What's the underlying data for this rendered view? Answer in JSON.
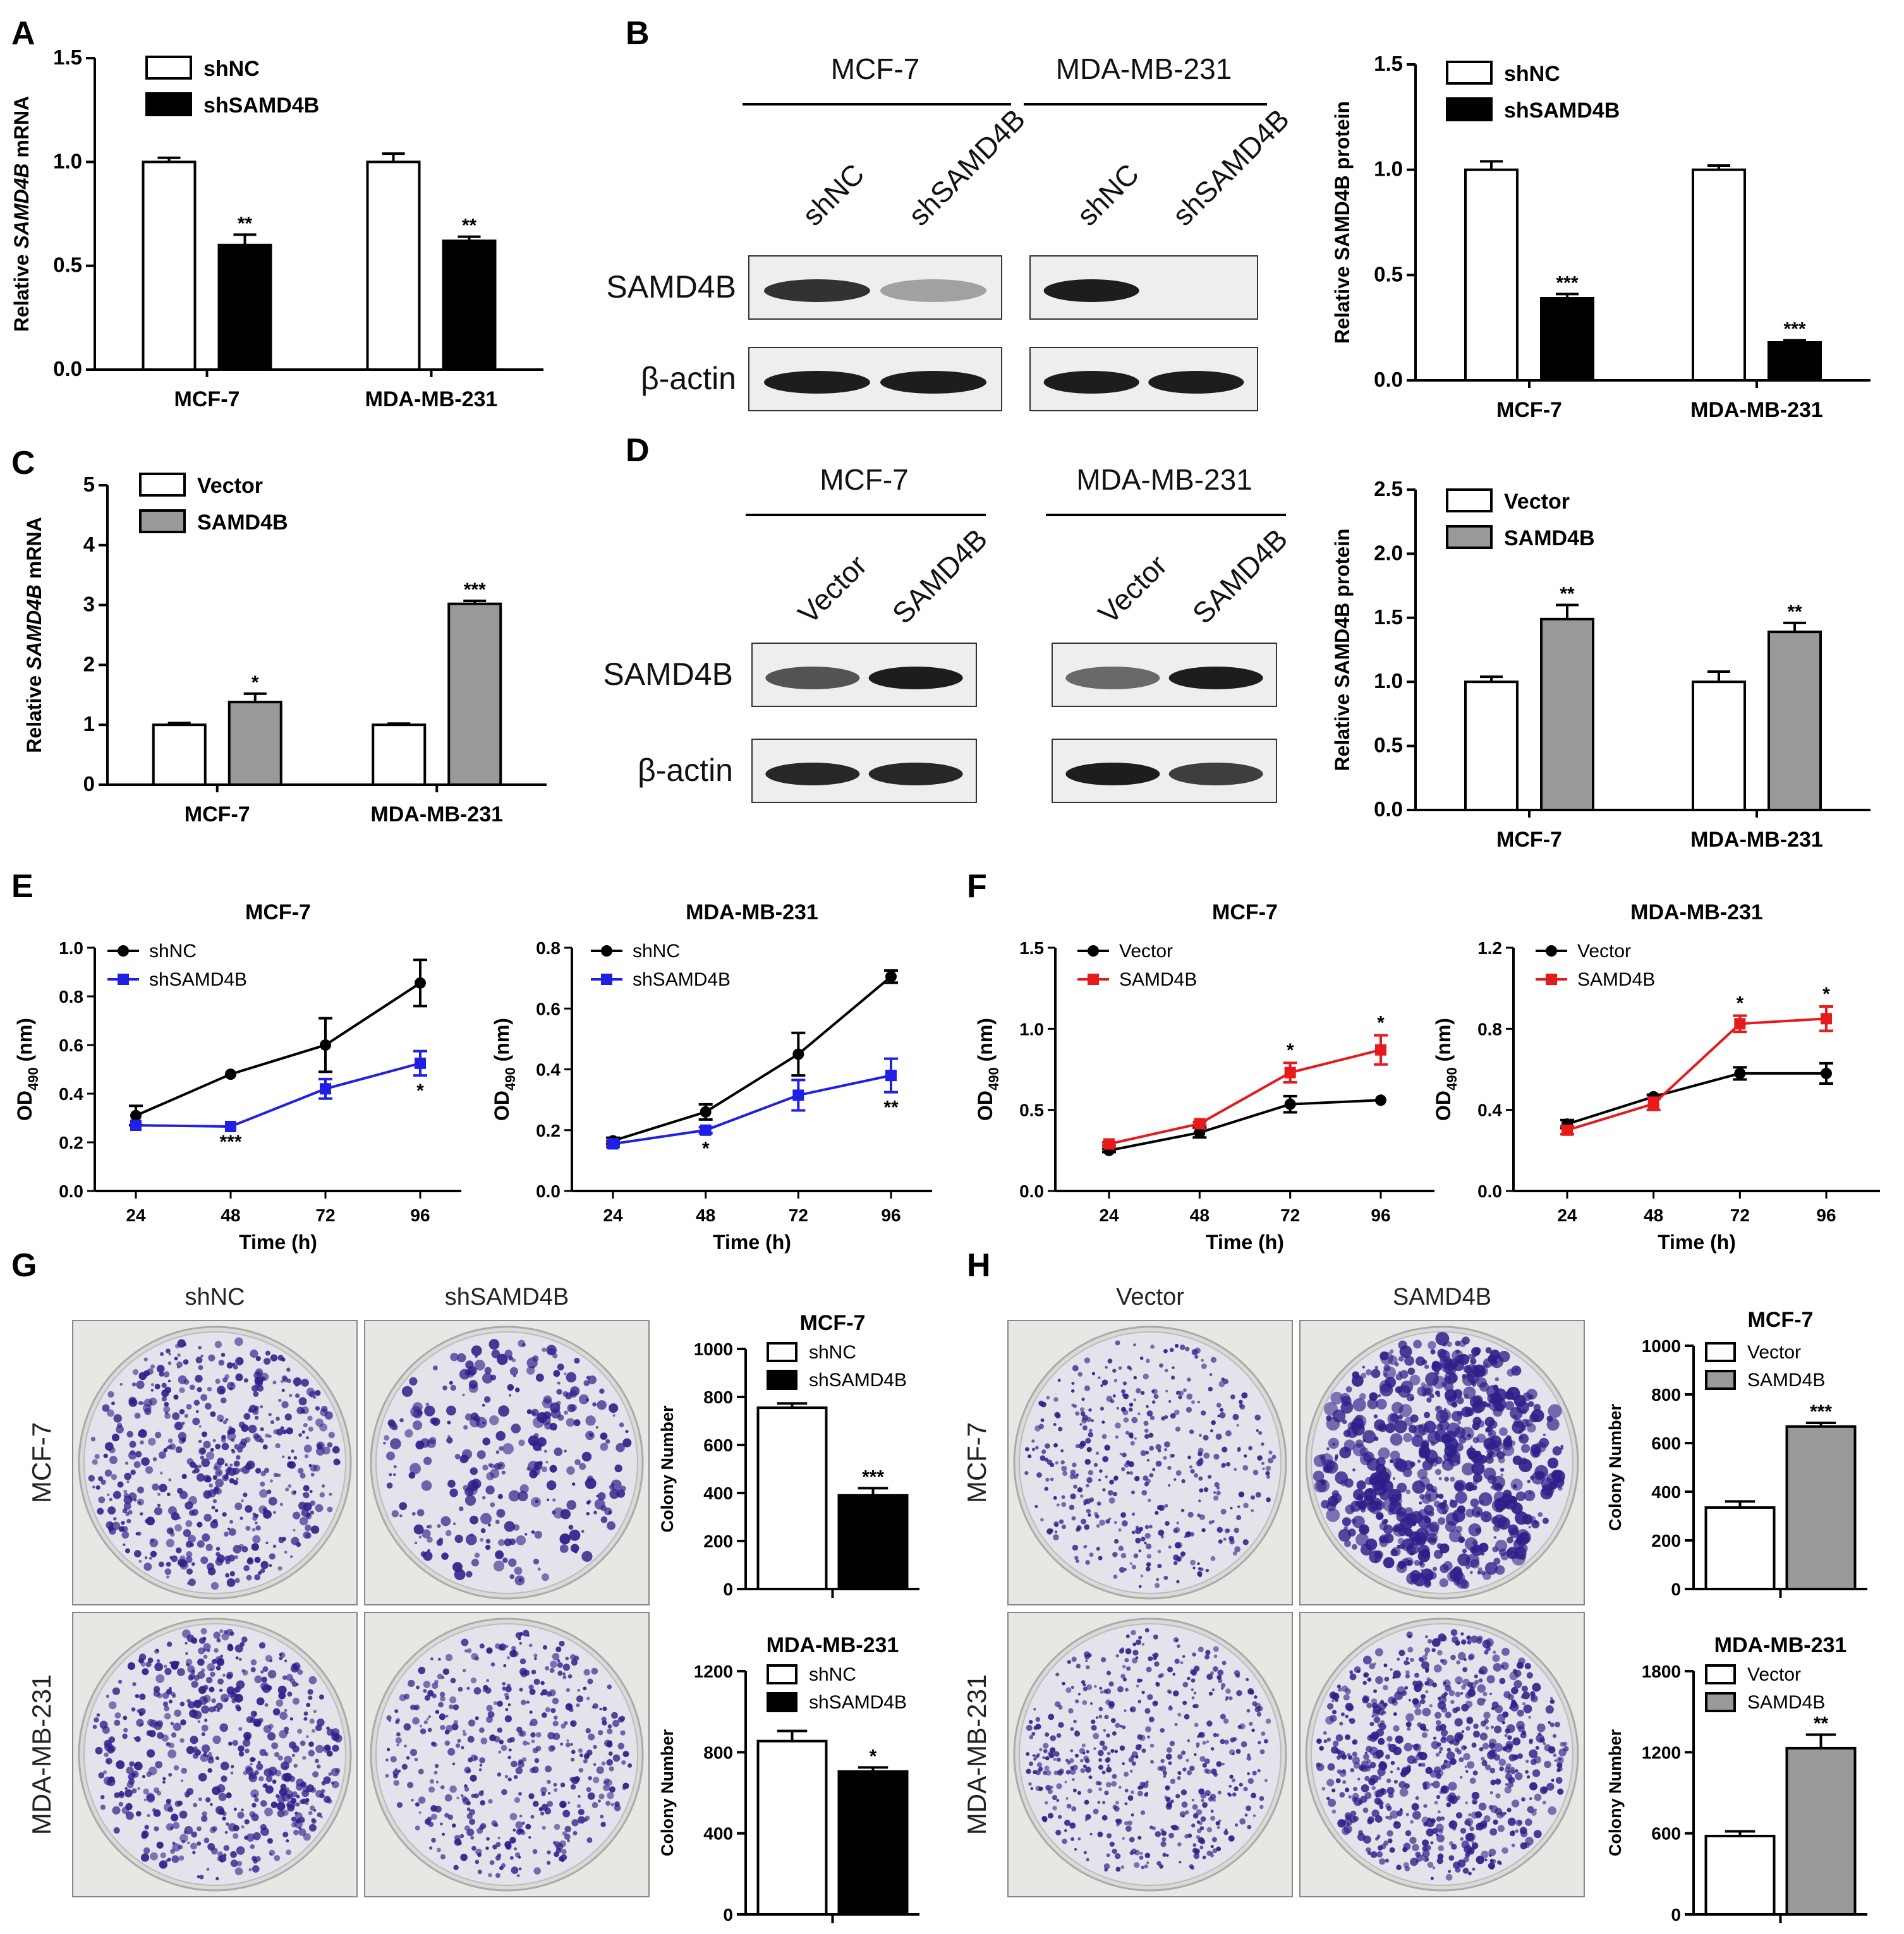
{
  "panels": {
    "A": "A",
    "B": "B",
    "C": "C",
    "D": "D",
    "E": "E",
    "F": "F",
    "G": "G",
    "H": "H"
  },
  "western_blots": {
    "B": {
      "cell_lines": [
        "MCF-7",
        "MDA-MB-231"
      ],
      "lanes": [
        "shNC",
        "shSAMD4B",
        "shNC",
        "shSAMD4B"
      ],
      "rows": [
        "SAMD4B",
        "β-actin"
      ]
    },
    "D": {
      "cell_lines": [
        "MCF-7",
        "MDA-MB-231"
      ],
      "lanes": [
        "Vector",
        "SAMD4B",
        "Vector",
        "SAMD4B"
      ],
      "rows": [
        "SAMD4B",
        "β-actin"
      ]
    }
  },
  "colony_plates": {
    "G": {
      "columns": [
        "shNC",
        "shSAMD4B"
      ],
      "rows": [
        "MCF-7",
        "MDA-MB-231"
      ]
    },
    "H": {
      "columns": [
        "Vector",
        "SAMD4B"
      ],
      "rows": [
        "MCF-7",
        "MDA-MB-231"
      ]
    }
  },
  "colors": {
    "shNC": "#ffffff",
    "shSAMD4B": "#000000",
    "Vector": "#ffffff",
    "SAMD4B": "#999999",
    "line_control": "#000000",
    "line_sh": "#1f1fe6",
    "line_oe": "#e61a1a",
    "plate_stain": "#2e1f8a"
  },
  "chart_data": [
    {
      "id": "A",
      "type": "bar",
      "title": "",
      "categories": [
        "MCF-7",
        "MDA-MB-231"
      ],
      "series": [
        {
          "name": "shNC",
          "values": [
            1.0,
            1.0
          ],
          "errors": [
            0.02,
            0.04
          ]
        },
        {
          "name": "shSAMD4B",
          "values": [
            0.6,
            0.62
          ],
          "errors": [
            0.05,
            0.02
          ]
        }
      ],
      "stars": [
        [
          "",
          "**"
        ],
        [
          "",
          "**"
        ]
      ],
      "ylabel_parts": [
        "Relative ",
        "SAMD4B",
        " mRNA"
      ],
      "ylim": [
        0,
        1.5
      ],
      "yticks": [
        "0.0",
        "0.5",
        "1.0",
        "1.5"
      ]
    },
    {
      "id": "B",
      "type": "bar",
      "title": "",
      "categories": [
        "MCF-7",
        "MDA-MB-231"
      ],
      "series": [
        {
          "name": "shNC",
          "values": [
            1.0,
            1.0
          ],
          "errors": [
            0.04,
            0.02
          ]
        },
        {
          "name": "shSAMD4B",
          "values": [
            0.39,
            0.18
          ],
          "errors": [
            0.02,
            0.01
          ]
        }
      ],
      "stars": [
        [
          "",
          "***"
        ],
        [
          "",
          "***"
        ]
      ],
      "ylabel_parts": [
        "Relative SAMD4B protein"
      ],
      "ylim": [
        0,
        1.5
      ],
      "yticks": [
        "0.0",
        "0.5",
        "1.0",
        "1.5"
      ]
    },
    {
      "id": "C",
      "type": "bar",
      "title": "",
      "categories": [
        "MCF-7",
        "MDA-MB-231"
      ],
      "series": [
        {
          "name": "Vector",
          "values": [
            1.0,
            1.0
          ],
          "errors": [
            0.03,
            0.02
          ]
        },
        {
          "name": "SAMD4B",
          "values": [
            1.38,
            3.02
          ],
          "errors": [
            0.14,
            0.05
          ]
        }
      ],
      "stars": [
        [
          "",
          "*"
        ],
        [
          "",
          "***"
        ]
      ],
      "ylabel_parts": [
        "Relative ",
        "SAMD4B",
        " mRNA"
      ],
      "ylim": [
        0,
        5
      ],
      "yticks": [
        "0",
        "1",
        "2",
        "3",
        "4",
        "5"
      ]
    },
    {
      "id": "D",
      "type": "bar",
      "title": "",
      "categories": [
        "MCF-7",
        "MDA-MB-231"
      ],
      "series": [
        {
          "name": "Vector",
          "values": [
            1.0,
            1.0
          ],
          "errors": [
            0.04,
            0.08
          ]
        },
        {
          "name": "SAMD4B",
          "values": [
            1.49,
            1.39
          ],
          "errors": [
            0.11,
            0.07
          ]
        }
      ],
      "stars": [
        [
          "",
          "**"
        ],
        [
          "",
          "**"
        ]
      ],
      "ylabel_parts": [
        "Relative SAMD4B protein"
      ],
      "ylim": [
        0,
        2.5
      ],
      "yticks": [
        "0.0",
        "0.5",
        "1.0",
        "1.5",
        "2.0",
        "2.5"
      ]
    },
    {
      "id": "E1",
      "type": "line",
      "title": "MCF-7",
      "x": [
        "24",
        "48",
        "72",
        "96"
      ],
      "series": [
        {
          "name": "shNC",
          "values": [
            0.31,
            0.48,
            0.6,
            0.855
          ],
          "errors": [
            0.04,
            0.0,
            0.11,
            0.095
          ]
        },
        {
          "name": "shSAMD4B",
          "values": [
            0.27,
            0.265,
            0.42,
            0.525
          ],
          "errors": [
            0.0,
            0.0,
            0.04,
            0.05
          ]
        }
      ],
      "stars": [
        "",
        "***",
        "",
        "*"
      ],
      "xlabel": "Time (h)",
      "ylabel_main": "OD",
      "ylabel_sub": "490",
      "ylabel_unit": " (nm)",
      "ylim": [
        0,
        1.0
      ],
      "yticks": [
        "0.0",
        "0.2",
        "0.4",
        "0.6",
        "0.8",
        "1.0"
      ]
    },
    {
      "id": "E2",
      "type": "line",
      "title": "MDA-MB-231",
      "x": [
        "24",
        "48",
        "72",
        "96"
      ],
      "series": [
        {
          "name": "shNC",
          "values": [
            0.165,
            0.26,
            0.45,
            0.705
          ],
          "errors": [
            0.01,
            0.025,
            0.07,
            0.02
          ]
        },
        {
          "name": "shSAMD4B",
          "values": [
            0.155,
            0.2,
            0.315,
            0.38
          ],
          "errors": [
            0.01,
            0.01,
            0.05,
            0.055
          ]
        }
      ],
      "stars": [
        "",
        "*",
        "",
        "**"
      ],
      "xlabel": "Time (h)",
      "ylabel_main": "OD",
      "ylabel_sub": "490",
      "ylabel_unit": " (nm)",
      "ylim": [
        0,
        0.8
      ],
      "yticks": [
        "0.0",
        "0.2",
        "0.4",
        "0.6",
        "0.8"
      ]
    },
    {
      "id": "F1",
      "type": "line",
      "title": "MCF-7",
      "x": [
        "24",
        "48",
        "72",
        "96"
      ],
      "series": [
        {
          "name": "Vector",
          "values": [
            0.25,
            0.36,
            0.535,
            0.56
          ],
          "errors": [
            0.01,
            0.03,
            0.05,
            0.0
          ]
        },
        {
          "name": "SAMD4B",
          "values": [
            0.29,
            0.415,
            0.73,
            0.87
          ],
          "errors": [
            0.01,
            0.01,
            0.06,
            0.09
          ]
        }
      ],
      "stars": [
        "",
        "",
        "*",
        "*"
      ],
      "xlabel": "Time (h)",
      "ylabel_main": "OD",
      "ylabel_sub": "490",
      "ylabel_unit": " (nm)",
      "ylim": [
        0,
        1.5
      ],
      "yticks": [
        "0.0",
        "0.5",
        "1.0",
        "1.5"
      ]
    },
    {
      "id": "F2",
      "type": "line",
      "title": "MDA-MB-231",
      "x": [
        "24",
        "48",
        "72",
        "96"
      ],
      "series": [
        {
          "name": "Vector",
          "values": [
            0.33,
            0.465,
            0.58,
            0.58
          ],
          "errors": [
            0.02,
            0.01,
            0.03,
            0.05
          ]
        },
        {
          "name": "SAMD4B",
          "values": [
            0.3,
            0.43,
            0.825,
            0.85
          ],
          "errors": [
            0.02,
            0.03,
            0.04,
            0.06
          ]
        }
      ],
      "stars": [
        "",
        "",
        "*",
        "*"
      ],
      "xlabel": "Time (h)",
      "ylabel_main": "OD",
      "ylabel_sub": "490",
      "ylabel_unit": " (nm)",
      "ylim": [
        0,
        1.2
      ],
      "yticks": [
        "0.0",
        "0.4",
        "0.8",
        "1.2"
      ]
    },
    {
      "id": "G1",
      "type": "bar",
      "title": "MCF-7",
      "categories": [
        ""
      ],
      "series": [
        {
          "name": "shNC",
          "values": [
            755
          ],
          "errors": [
            18
          ]
        },
        {
          "name": "shSAMD4B",
          "values": [
            390
          ],
          "errors": [
            30
          ]
        }
      ],
      "stars": [
        [
          "",
          "***"
        ]
      ],
      "ylabel_parts": [
        "Colony Number"
      ],
      "ylim": [
        0,
        1000
      ],
      "yticks": [
        "0",
        "200",
        "400",
        "600",
        "800",
        "1000"
      ]
    },
    {
      "id": "G2",
      "type": "bar",
      "title": "MDA-MB-231",
      "categories": [
        ""
      ],
      "series": [
        {
          "name": "shNC",
          "values": [
            855
          ],
          "errors": [
            50
          ]
        },
        {
          "name": "shSAMD4B",
          "values": [
            705
          ],
          "errors": [
            20
          ]
        }
      ],
      "stars": [
        [
          "",
          "*"
        ]
      ],
      "ylabel_parts": [
        "Colony Number"
      ],
      "ylim": [
        0,
        1200
      ],
      "yticks": [
        "0",
        "400",
        "800",
        "1200"
      ]
    },
    {
      "id": "H1",
      "type": "bar",
      "title": "MCF-7",
      "categories": [
        ""
      ],
      "series": [
        {
          "name": "Vector",
          "values": [
            335
          ],
          "errors": [
            25
          ]
        },
        {
          "name": "SAMD4B",
          "values": [
            668
          ],
          "errors": [
            15
          ]
        }
      ],
      "stars": [
        [
          "",
          "***"
        ]
      ],
      "ylabel_parts": [
        "Colony Number"
      ],
      "ylim": [
        0,
        1000
      ],
      "yticks": [
        "0",
        "200",
        "400",
        "600",
        "800",
        "1000"
      ]
    },
    {
      "id": "H2",
      "type": "bar",
      "title": "MDA-MB-231",
      "categories": [
        ""
      ],
      "series": [
        {
          "name": "Vector",
          "values": [
            580
          ],
          "errors": [
            35
          ]
        },
        {
          "name": "SAMD4B",
          "values": [
            1230
          ],
          "errors": [
            100
          ]
        }
      ],
      "stars": [
        [
          "",
          "**"
        ]
      ],
      "ylabel_parts": [
        "Colony Number"
      ],
      "ylim": [
        0,
        1800
      ],
      "yticks": [
        "0",
        "600",
        "1200",
        "1800"
      ]
    }
  ]
}
